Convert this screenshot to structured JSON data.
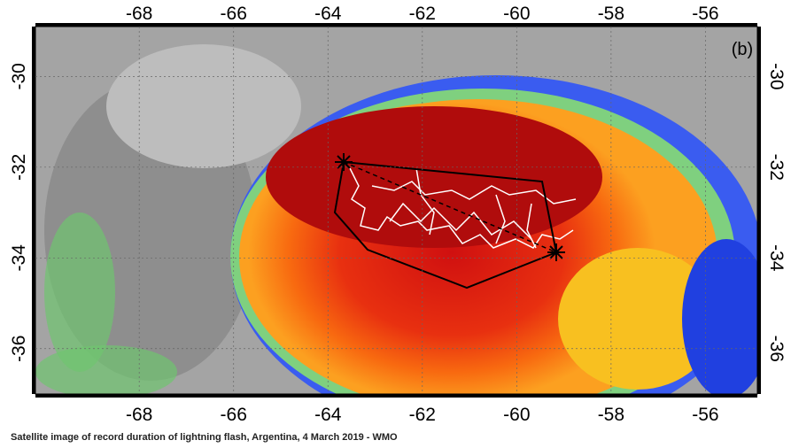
{
  "map": {
    "panel_label": "(b)",
    "lon_range": [
      -70.2,
      -54.9
    ],
    "lat_range": [
      -28.9,
      -37
    ],
    "lon_ticks": [
      -68,
      -66,
      -64,
      -62,
      -60,
      -58,
      -56
    ],
    "lat_ticks": [
      -30,
      -32,
      -34,
      -36
    ]
  },
  "caption": "Satellite image of record duration of lightning flash, Argentina, 4 March 2019 - WMO"
}
